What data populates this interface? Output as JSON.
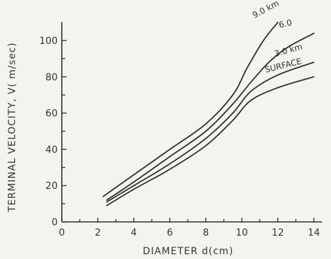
{
  "chart_data": {
    "type": "line",
    "title": "",
    "xlabel": "DIAMETER d(cm)",
    "ylabel": "TERMINAL VELOCITY, V( m/sec)",
    "xlim": [
      0,
      14
    ],
    "ylim": [
      0,
      100
    ],
    "x_ticks": [
      0,
      2,
      4,
      6,
      8,
      10,
      12,
      14
    ],
    "y_ticks": [
      0,
      20,
      40,
      60,
      80,
      100
    ],
    "grid": false,
    "line_color": "#2b2b2b",
    "series": [
      {
        "name": "SURFACE",
        "x": [
          2.5,
          4,
          6,
          8,
          9.5,
          10.5,
          12,
          14
        ],
        "y": [
          9,
          18,
          29,
          42,
          56,
          67,
          74,
          80
        ]
      },
      {
        "name": "3.0 km",
        "x": [
          2.5,
          4,
          6,
          8,
          9.5,
          10.5,
          12,
          14
        ],
        "y": [
          11,
          20,
          32,
          46,
          60,
          72,
          81,
          88
        ]
      },
      {
        "name": "6.0",
        "x": [
          2.5,
          4,
          6,
          8,
          9.5,
          10.5,
          11.5,
          12.5,
          14
        ],
        "y": [
          12,
          22,
          36,
          50,
          65,
          77,
          88,
          96,
          104
        ]
      },
      {
        "name": "9.0 km",
        "x": [
          2.3,
          4,
          6,
          8,
          9.5,
          10.3,
          11.2,
          12
        ],
        "y": [
          14,
          26,
          40,
          54,
          70,
          85,
          100,
          110
        ]
      }
    ]
  }
}
